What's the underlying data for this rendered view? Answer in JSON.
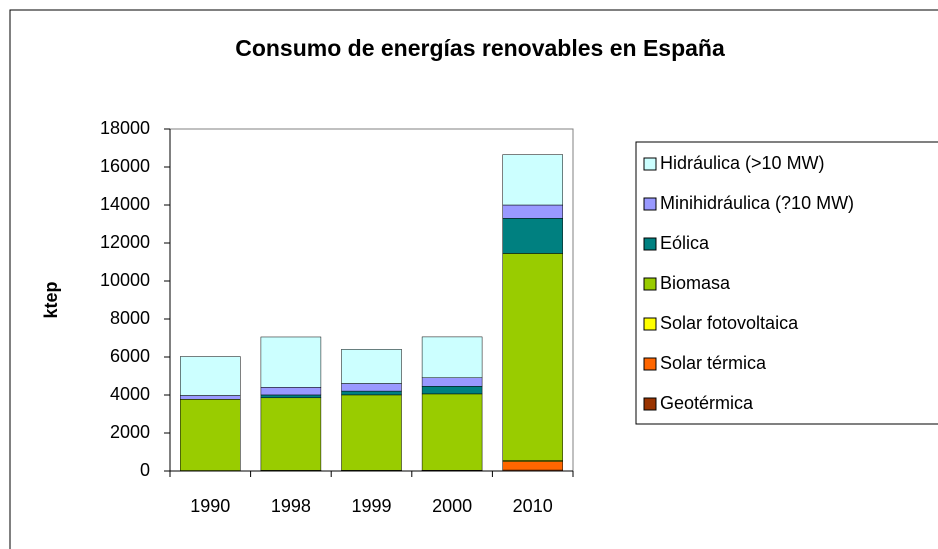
{
  "chart_data": {
    "type": "stacked_bar",
    "title": "Consumo de energías renovables en España",
    "ylabel": "ktep",
    "categories": [
      "1990",
      "1998",
      "1999",
      "2000",
      "2010"
    ],
    "series": [
      {
        "name": "Geotérmica",
        "color": "#993300",
        "values": [
          3,
          8,
          8,
          8,
          50
        ]
      },
      {
        "name": "Solar térmica",
        "color": "#ff6600",
        "values": [
          20,
          25,
          26,
          28,
          450
        ]
      },
      {
        "name": "Solar fotovoltaica",
        "color": "#ffff00",
        "values": [
          0,
          1,
          1,
          2,
          50
        ]
      },
      {
        "name": "Biomasa",
        "color": "#99cc00",
        "values": [
          3750,
          3820,
          3970,
          4020,
          10900
        ]
      },
      {
        "name": "Eólica",
        "color": "#008080",
        "values": [
          1,
          150,
          200,
          400,
          1850
        ]
      },
      {
        "name": "Minihidráulica (?10 MW)",
        "color": "#9999ff",
        "values": [
          200,
          400,
          400,
          450,
          700
        ]
      },
      {
        "name": "Hidráulica (>10 MW)",
        "color": "#ccffff",
        "values": [
          2050,
          2650,
          1800,
          2150,
          2650
        ]
      }
    ],
    "ylim": [
      0,
      18000
    ],
    "yticks": [
      0,
      2000,
      4000,
      6000,
      8000,
      10000,
      12000,
      14000,
      16000,
      18000
    ],
    "legend": "right"
  }
}
